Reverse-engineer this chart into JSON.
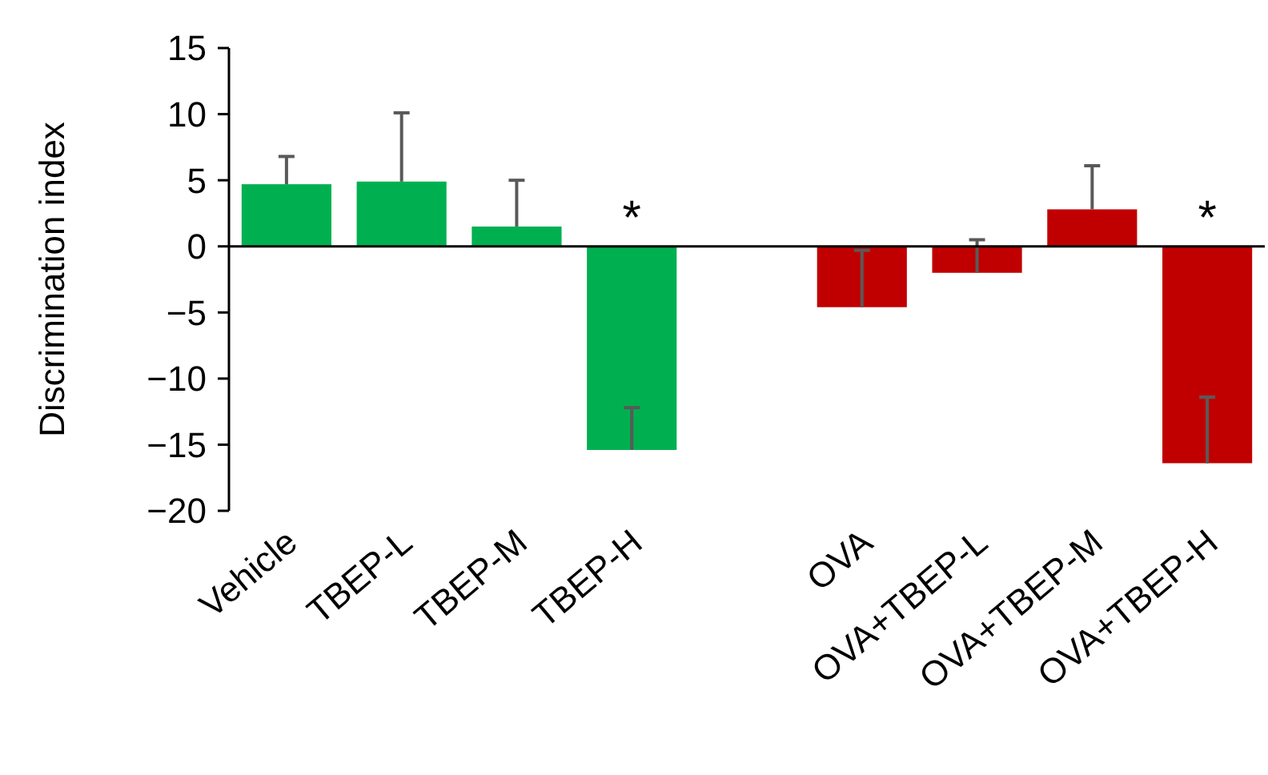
{
  "chart_data": {
    "type": "bar",
    "ylabel": "Discrimination index",
    "categories": [
      "Vehicle",
      "TBEP-L",
      "TBEP-M",
      "TBEP-H",
      null,
      "OVA",
      "OVA+TBEP-L",
      "OVA+TBEP-M",
      "OVA+TBEP-H"
    ],
    "values": [
      4.7,
      4.9,
      1.5,
      -15.4,
      null,
      -4.6,
      -2.0,
      2.8,
      -16.4
    ],
    "errors": [
      [
        4.7,
        6.8
      ],
      [
        4.9,
        10.1
      ],
      [
        1.5,
        5.0
      ],
      [
        -15.4,
        -12.2
      ],
      null,
      [
        -4.6,
        -0.3
      ],
      [
        -2.0,
        0.5
      ],
      [
        2.8,
        6.1
      ],
      [
        -16.4,
        -11.4
      ]
    ],
    "colors": [
      "#00b050",
      "#00b050",
      "#00b050",
      "#00b050",
      null,
      "#c00000",
      "#c00000",
      "#c00000",
      "#c00000"
    ],
    "ylim": [
      -20,
      15
    ],
    "yticks": [
      {
        "value": -20,
        "label": "−20"
      },
      {
        "value": -15,
        "label": "−15"
      },
      {
        "value": -10,
        "label": "−10"
      },
      {
        "value": -5,
        "label": "−5"
      },
      0,
      5,
      10,
      15
    ],
    "annotations": [
      "*",
      "*"
    ]
  }
}
